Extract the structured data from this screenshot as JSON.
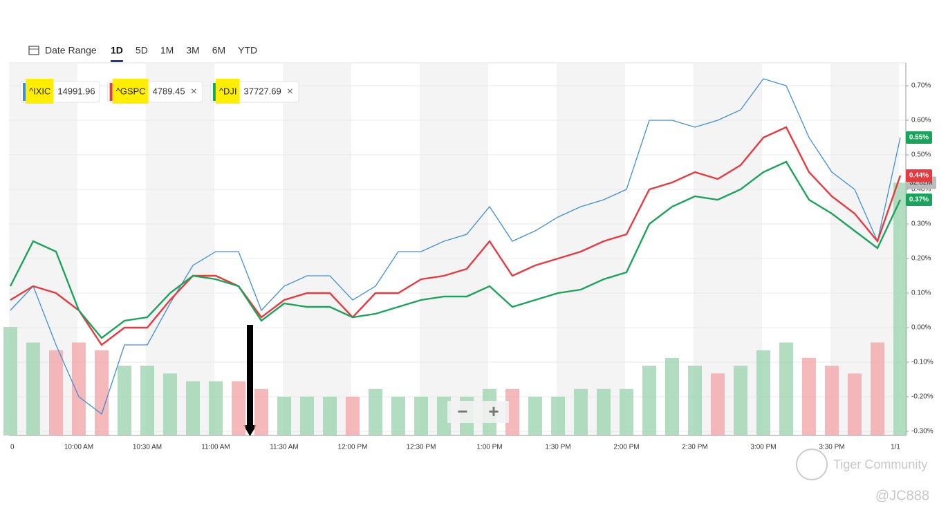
{
  "toolbar": {
    "date_range": "Date Range",
    "ranges": [
      "1D",
      "5D",
      "1M",
      "3M",
      "6M",
      "YTD"
    ],
    "active": 0
  },
  "legend_chips": [
    {
      "symbol": "^IXIC",
      "price": "14991.96"
    },
    {
      "symbol": "^GSPC",
      "price": "4789.45",
      "close": "×"
    },
    {
      "symbol": "^DJI",
      "price": "37727.69",
      "close": "×"
    }
  ],
  "zoom": [
    "−",
    "+"
  ],
  "watermark": {
    "brand": "Tiger Community",
    "user": "@JC888"
  },
  "chart_data": {
    "type": "line",
    "categories": [
      "0",
      null,
      null,
      "10:00 AM",
      null,
      null,
      "10:30 AM",
      null,
      null,
      "11:00 AM",
      null,
      null,
      "11:30 AM",
      null,
      null,
      "12:00 PM",
      null,
      null,
      "12:30 PM",
      null,
      null,
      "1:00 PM",
      null,
      null,
      "1:30 PM",
      null,
      null,
      "2:00 PM",
      null,
      null,
      "2:30 PM",
      null,
      null,
      "3:00 PM",
      null,
      null,
      "3:30 PM",
      null,
      null,
      "1/1"
    ],
    "series": [
      {
        "name": "^IXIC",
        "color": "#3d8fd8",
        "values": [
          0.05,
          0.12,
          -0.05,
          -0.2,
          -0.25,
          -0.05,
          -0.05,
          0.07,
          0.18,
          0.22,
          0.22,
          0.05,
          0.12,
          0.15,
          0.15,
          0.08,
          0.12,
          0.22,
          0.22,
          0.25,
          0.27,
          0.35,
          0.25,
          0.28,
          0.32,
          0.35,
          0.37,
          0.4,
          0.6,
          0.6,
          0.58,
          0.6,
          0.63,
          0.72,
          0.7,
          0.55,
          0.45,
          0.4,
          0.25,
          0.55
        ],
        "value_labels": {
          "39": "0.55%"
        },
        "end_color": "#1aa35a"
      },
      {
        "name": "^GSPC",
        "color": "#e8393f",
        "values": [
          0.08,
          0.12,
          0.1,
          0.05,
          -0.05,
          0.0,
          0.0,
          0.08,
          0.15,
          0.15,
          0.12,
          0.03,
          0.08,
          0.1,
          0.1,
          0.03,
          0.1,
          0.1,
          0.14,
          0.15,
          0.17,
          0.25,
          0.15,
          0.18,
          0.2,
          0.22,
          0.25,
          0.27,
          0.4,
          0.42,
          0.45,
          0.43,
          0.47,
          0.55,
          0.58,
          0.45,
          0.38,
          0.33,
          0.25,
          0.44
        ],
        "value_labels": {
          "39": "0.44%"
        },
        "end_color": "#e8393f"
      },
      {
        "name": "^DJI",
        "color": "#1aa35a",
        "values": [
          0.12,
          0.25,
          0.22,
          0.05,
          -0.03,
          0.02,
          0.03,
          0.1,
          0.15,
          0.14,
          0.12,
          0.02,
          0.07,
          0.06,
          0.06,
          0.03,
          0.04,
          0.06,
          0.08,
          0.09,
          0.09,
          0.12,
          0.06,
          0.08,
          0.1,
          0.11,
          0.14,
          0.16,
          0.3,
          0.35,
          0.38,
          0.37,
          0.4,
          0.45,
          0.48,
          0.37,
          0.33,
          0.28,
          0.23,
          0.37
        ],
        "value_labels": {
          "39": "0.37%"
        },
        "end_color": "#1aa35a"
      }
    ],
    "ylim": [
      -0.312,
      0.764
    ],
    "yticks": [
      {
        "value": -0.3,
        "label": "-0.30%"
      },
      {
        "value": -0.2,
        "label": "-0.20%"
      },
      {
        "value": -0.1,
        "label": "-0.10%"
      },
      {
        "value": 0,
        "label": "0.00%"
      },
      {
        "value": 0.1,
        "label": "0.10%"
      },
      {
        "value": 0.2,
        "label": "0.20%"
      },
      {
        "value": 0.3,
        "label": "0.30%"
      },
      {
        "value": 0.4,
        "label": "0.40%"
      },
      {
        "value": 0.5,
        "label": "0.50%"
      },
      {
        "value": 0.6,
        "label": "0.60%"
      },
      {
        "value": 0.7,
        "label": "0.70%"
      }
    ],
    "grid": true,
    "volume": {
      "values": [
        14,
        12,
        11,
        12,
        11,
        9,
        9,
        8,
        7,
        7,
        7,
        6,
        5,
        5,
        5,
        5,
        6,
        5,
        5,
        5,
        5,
        6,
        6,
        5,
        5,
        6,
        6,
        6,
        9,
        10,
        9,
        8,
        9,
        11,
        12,
        10,
        9,
        8,
        12,
        32.62
      ],
      "value_labels": {
        "39": "32.62M"
      },
      "vlim": [
        0,
        48
      ],
      "up_color": "#9fd4b2",
      "down_color": "#f2a7aa"
    }
  }
}
